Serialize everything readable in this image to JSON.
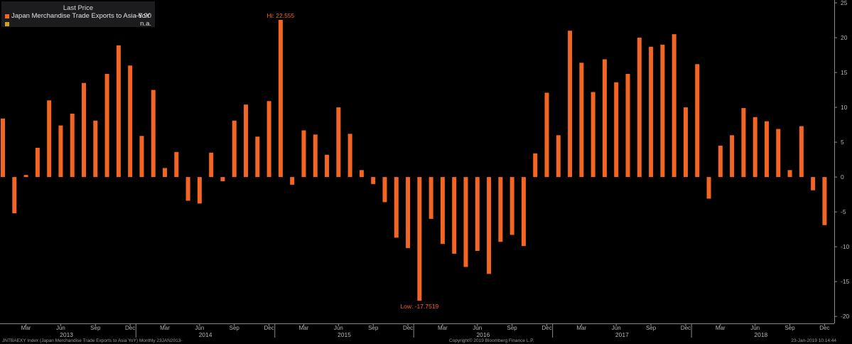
{
  "legend": {
    "header": "Last Price",
    "series": [
      {
        "name": "Japan Merchandise Trade Exports to Asia YoY",
        "value": "-6.90",
        "color": "#f26522"
      },
      {
        "name": "",
        "value": "n.a.",
        "color": "#d4a017"
      }
    ]
  },
  "footer": {
    "left": "JNTBAEXY Index (Japan Merchandise Trade Exports to Asia YoY)  Monthly 23JAN2013-",
    "center": "Copyright© 2019 Bloomberg Finance L.P.",
    "right": "23-Jan-2019 10:14:44"
  },
  "chart_data": {
    "type": "bar",
    "x": [
      "2013-01",
      "2013-02",
      "2013-03",
      "2013-04",
      "2013-05",
      "2013-06",
      "2013-07",
      "2013-08",
      "2013-09",
      "2013-10",
      "2013-11",
      "2013-12",
      "2014-01",
      "2014-02",
      "2014-03",
      "2014-04",
      "2014-05",
      "2014-06",
      "2014-07",
      "2014-08",
      "2014-09",
      "2014-10",
      "2014-11",
      "2014-12",
      "2015-01",
      "2015-02",
      "2015-03",
      "2015-04",
      "2015-05",
      "2015-06",
      "2015-07",
      "2015-08",
      "2015-09",
      "2015-10",
      "2015-11",
      "2015-12",
      "2016-01",
      "2016-02",
      "2016-03",
      "2016-04",
      "2016-05",
      "2016-06",
      "2016-07",
      "2016-08",
      "2016-09",
      "2016-10",
      "2016-11",
      "2016-12",
      "2017-01",
      "2017-02",
      "2017-03",
      "2017-04",
      "2017-05",
      "2017-06",
      "2017-07",
      "2017-08",
      "2017-09",
      "2017-10",
      "2017-11",
      "2017-12",
      "2018-01",
      "2018-02",
      "2018-03",
      "2018-04",
      "2018-05",
      "2018-06",
      "2018-07",
      "2018-08",
      "2018-09",
      "2018-10",
      "2018-11",
      "2018-12"
    ],
    "series": [
      {
        "name": "Japan Merchandise Trade Exports to Asia YoY",
        "color": "#f26522",
        "values": [
          8.4,
          -5.2,
          0.3,
          4.2,
          11.0,
          7.4,
          9.1,
          13.5,
          8.1,
          14.8,
          18.9,
          16.0,
          5.9,
          12.5,
          1.3,
          3.6,
          -3.4,
          -3.8,
          3.5,
          -0.6,
          8.1,
          10.4,
          5.8,
          10.9,
          22.555,
          -1.1,
          6.7,
          6.1,
          3.2,
          10.0,
          6.2,
          1.0,
          -1.0,
          -3.6,
          -8.7,
          -10.2,
          -17.7519,
          -6.0,
          -9.6,
          -11.0,
          -12.9,
          -10.6,
          -13.9,
          -9.3,
          -8.3,
          -9.9,
          3.4,
          12.1,
          6.0,
          21.0,
          16.4,
          12.2,
          16.9,
          13.6,
          14.8,
          20.0,
          18.7,
          19.0,
          20.5,
          10.0,
          16.2,
          -3.1,
          4.5,
          6.0,
          9.9,
          8.6,
          8.0,
          6.9,
          1.0,
          7.3,
          -1.9,
          -6.9
        ]
      }
    ],
    "annotations": [
      {
        "label": "Hi: 22.555",
        "x": "2015-01",
        "y": 22.555
      },
      {
        "label": "Low: -17.7519",
        "x": "2016-01",
        "y": -17.7519
      }
    ],
    "ylim": [
      -21,
      25
    ],
    "yticks": [
      "25",
      "20",
      "15",
      "10",
      "5",
      "0",
      "-5",
      "-10",
      "-15",
      "-20"
    ],
    "ytick_values": [
      25,
      20,
      15,
      10,
      5,
      0,
      -5,
      -10,
      -15,
      -20
    ],
    "month_labels": [
      "Mar",
      "Jun",
      "Sep",
      "Dec",
      "Mar",
      "Jun",
      "Sep",
      "Dec",
      "Mar",
      "Jun",
      "Sep",
      "Dec",
      "Mar",
      "Jun",
      "Sep",
      "Dec",
      "Mar",
      "Jun",
      "Sep",
      "Dec",
      "Mar",
      "Jun",
      "Sep",
      "Dec"
    ],
    "month_label_x": [
      "2013-03",
      "2013-06",
      "2013-09",
      "2013-12",
      "2014-03",
      "2014-06",
      "2014-09",
      "2014-12",
      "2015-03",
      "2015-06",
      "2015-09",
      "2015-12",
      "2016-03",
      "2016-06",
      "2016-09",
      "2016-12",
      "2017-03",
      "2017-06",
      "2017-09",
      "2017-12",
      "2018-03",
      "2018-06",
      "2018-09",
      "2018-12"
    ],
    "year_labels": [
      "2013",
      "2014",
      "2015",
      "2016",
      "2017",
      "2018"
    ],
    "year_label_x": [
      "2013-07",
      "2014-07",
      "2015-07",
      "2016-07",
      "2017-07",
      "2018-07"
    ],
    "grid": false,
    "legend_position": "top-left",
    "background": "#000000",
    "axis_color": "#8a8a8a"
  }
}
